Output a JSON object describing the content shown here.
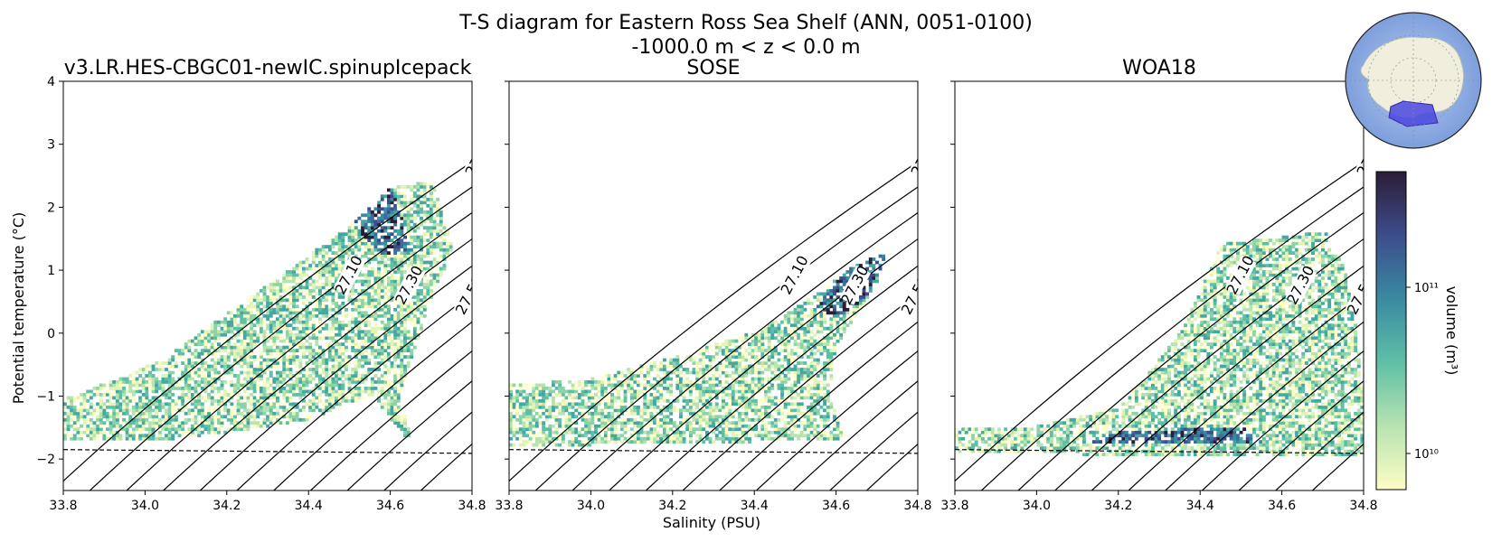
{
  "figure": {
    "title_line1": "T-S diagram for Eastern Ross Sea Shelf (ANN, 0051-0100)",
    "title_line2": "-1000.0 m < z < 0.0 m",
    "xlabel": "Salinity (PSU)",
    "ylabel": "Potential temperature (°C)",
    "colorbar_label": "volume (m³)",
    "colorbar_ticks": [
      "10¹¹",
      "10¹⁰"
    ],
    "inset": "antarctica-locator-map"
  },
  "chart_data": [
    {
      "type": "heatmap",
      "title": "v3.LR.HES-CBGC01-newIC.spinupIcepack",
      "xlim": [
        33.8,
        34.8
      ],
      "ylim": [
        -2.5,
        4
      ],
      "xticks": [
        "33.8",
        "34.0",
        "34.2",
        "34.4",
        "34.6",
        "34.8"
      ],
      "yticks": [
        "−2",
        "−1",
        "0",
        "1",
        "2",
        "3",
        "4"
      ],
      "density_contours": [
        "27.00",
        "27.10",
        "27.20",
        "27.30",
        "27.40",
        "27.50",
        "27.60",
        "27.70",
        "27.80",
        "27.90",
        "28.00"
      ],
      "freezing_line": [
        [
          33.8,
          -1.85
        ],
        [
          34.8,
          -1.91
        ]
      ],
      "data_envelope": [
        [
          33.8,
          -1.7
        ],
        [
          33.8,
          -1.05
        ],
        [
          33.95,
          -0.7
        ],
        [
          34.05,
          -0.4
        ],
        [
          34.2,
          0.3
        ],
        [
          34.35,
          1.0
        ],
        [
          34.5,
          1.7
        ],
        [
          34.6,
          2.3
        ],
        [
          34.7,
          2.4
        ],
        [
          34.75,
          1.3
        ],
        [
          34.7,
          0.6
        ],
        [
          34.62,
          -1.0
        ],
        [
          34.65,
          -1.8
        ],
        [
          34.55,
          -1.0
        ],
        [
          34.4,
          -1.4
        ],
        [
          34.2,
          -1.6
        ],
        [
          34.0,
          -1.75
        ],
        [
          33.8,
          -1.75
        ]
      ],
      "core": [
        [
          34.5,
          1.8
        ],
        [
          34.6,
          2.3
        ],
        [
          34.65,
          1.3
        ],
        [
          34.58,
          1.2
        ],
        [
          34.52,
          1.6
        ]
      ]
    },
    {
      "type": "heatmap",
      "title": "SOSE",
      "xlim": [
        33.8,
        34.8
      ],
      "ylim": [
        -2.5,
        4
      ],
      "xticks": [
        "33.8",
        "34.0",
        "34.2",
        "34.4",
        "34.6",
        "34.8"
      ],
      "yticks": [],
      "density_contours": [
        "27.00",
        "27.10",
        "27.20",
        "27.30",
        "27.40",
        "27.50",
        "27.60",
        "27.70",
        "27.80",
        "27.90",
        "28.00"
      ],
      "freezing_line": [
        [
          33.8,
          -1.85
        ],
        [
          34.8,
          -1.91
        ]
      ],
      "data_envelope": [
        [
          33.8,
          -1.85
        ],
        [
          33.8,
          -0.85
        ],
        [
          34.0,
          -0.75
        ],
        [
          34.2,
          -0.4
        ],
        [
          34.4,
          0.0
        ],
        [
          34.55,
          0.6
        ],
        [
          34.65,
          1.1
        ],
        [
          34.72,
          1.25
        ],
        [
          34.7,
          0.8
        ],
        [
          34.6,
          -0.2
        ],
        [
          34.58,
          -1.0
        ],
        [
          34.62,
          -1.7
        ],
        [
          34.4,
          -1.75
        ],
        [
          34.0,
          -1.8
        ]
      ],
      "core": [
        [
          34.62,
          1.0
        ],
        [
          34.72,
          1.25
        ],
        [
          34.68,
          0.6
        ],
        [
          34.6,
          0.2
        ],
        [
          34.55,
          0.4
        ]
      ]
    },
    {
      "type": "heatmap",
      "title": "WOA18",
      "xlim": [
        33.8,
        34.8
      ],
      "ylim": [
        -2.5,
        4
      ],
      "xticks": [
        "33.8",
        "34.0",
        "34.2",
        "34.4",
        "34.6",
        "34.8"
      ],
      "yticks": [],
      "density_contours": [
        "27.00",
        "27.10",
        "27.20",
        "27.30",
        "27.40",
        "27.50",
        "27.60",
        "27.70",
        "27.80",
        "27.90",
        "28.00"
      ],
      "freezing_line": [
        [
          33.8,
          -1.85
        ],
        [
          34.8,
          -1.91
        ]
      ],
      "data_envelope": [
        [
          33.8,
          -1.9
        ],
        [
          33.8,
          -1.55
        ],
        [
          34.0,
          -1.5
        ],
        [
          34.2,
          -1.2
        ],
        [
          34.35,
          0.0
        ],
        [
          34.45,
          1.4
        ],
        [
          34.6,
          1.5
        ],
        [
          34.7,
          1.6
        ],
        [
          34.75,
          1.0
        ],
        [
          34.78,
          0.0
        ],
        [
          34.8,
          -1.3
        ],
        [
          34.8,
          -2.0
        ],
        [
          34.4,
          -2.0
        ],
        [
          34.1,
          -1.95
        ]
      ],
      "core": [
        [
          34.2,
          -1.6
        ],
        [
          34.5,
          -1.5
        ],
        [
          34.55,
          -1.75
        ],
        [
          34.3,
          -1.8
        ],
        [
          34.1,
          -1.75
        ]
      ]
    }
  ]
}
